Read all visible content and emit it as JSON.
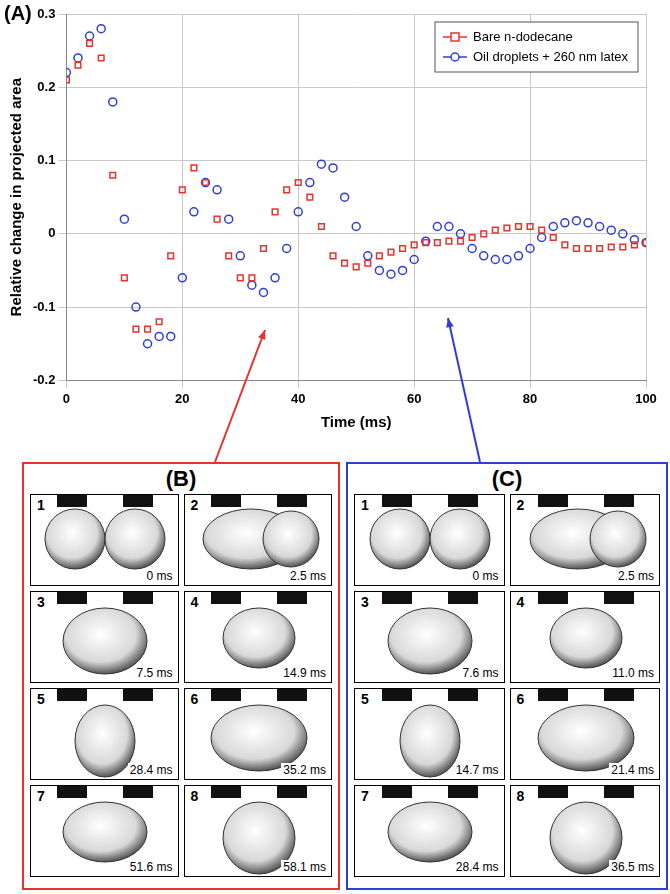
{
  "chart_data": {
    "type": "scatter",
    "panel": "(A)",
    "x_label": "Time (ms)",
    "y_label": "Relative change in projected area",
    "xlim": [
      0,
      100
    ],
    "xticks": [
      0,
      20,
      40,
      60,
      80,
      100
    ],
    "ylim": [
      -0.2,
      0.3
    ],
    "yticks": [
      -0.2,
      -0.1,
      0,
      0.1,
      0.2,
      0.3
    ],
    "grid": true,
    "legend": "upper right",
    "x": [
      0,
      2,
      4,
      6,
      8,
      10,
      12,
      14,
      16,
      18,
      20,
      22,
      24,
      26,
      28,
      30,
      32,
      34,
      36,
      38,
      40,
      42,
      44,
      46,
      48,
      50,
      52,
      54,
      56,
      58,
      60,
      62,
      64,
      66,
      68,
      70,
      72,
      74,
      76,
      78,
      80,
      82,
      84,
      86,
      88,
      90,
      92,
      94,
      96,
      98,
      100
    ],
    "series": [
      {
        "name": "Bare n-dodecane",
        "color": "#e8322d",
        "marker": "square",
        "line_style": "none",
        "values": [
          0.21,
          0.23,
          0.26,
          0.24,
          0.08,
          -0.06,
          -0.13,
          -0.13,
          -0.12,
          -0.03,
          0.06,
          0.09,
          0.07,
          0.02,
          -0.03,
          -0.06,
          -0.06,
          -0.02,
          0.03,
          0.06,
          0.07,
          0.05,
          0.01,
          -0.03,
          -0.04,
          -0.045,
          -0.04,
          -0.03,
          -0.025,
          -0.02,
          -0.015,
          -0.012,
          -0.012,
          -0.01,
          -0.01,
          -0.005,
          0,
          0.005,
          0.008,
          0.01,
          0.01,
          0.005,
          -0.005,
          -0.015,
          -0.02,
          -0.02,
          -0.02,
          -0.018,
          -0.018,
          -0.015,
          -0.012
        ]
      },
      {
        "name": "Oil droplets + 260 nm latex",
        "color": "#2f3fd6",
        "marker": "circle",
        "line_style": "none",
        "values": [
          0.22,
          0.24,
          0.27,
          0.28,
          0.18,
          0.02,
          -0.1,
          -0.15,
          -0.14,
          -0.14,
          -0.06,
          0.03,
          0.07,
          0.06,
          0.02,
          -0.03,
          -0.07,
          -0.08,
          -0.06,
          -0.02,
          0.03,
          0.07,
          0.095,
          0.09,
          0.05,
          0.01,
          -0.03,
          -0.05,
          -0.055,
          -0.05,
          -0.035,
          -0.01,
          0.01,
          0.01,
          0,
          -0.02,
          -0.03,
          -0.035,
          -0.035,
          -0.03,
          -0.02,
          -0.005,
          0.01,
          0.015,
          0.018,
          0.015,
          0.01,
          0.005,
          0,
          -0.008,
          -0.012
        ]
      }
    ]
  },
  "image_panels": [
    {
      "label": "(B)",
      "color": "#e8322d",
      "frames": [
        {
          "number": "1",
          "time": "0 ms"
        },
        {
          "number": "2",
          "time": "2.5 ms"
        },
        {
          "number": "3",
          "time": "7.5 ms"
        },
        {
          "number": "4",
          "time": "14.9 ms"
        },
        {
          "number": "5",
          "time": "28.4 ms"
        },
        {
          "number": "6",
          "time": "35.2 ms"
        },
        {
          "number": "7",
          "time": "51.6 ms"
        },
        {
          "number": "8",
          "time": "58.1 ms"
        }
      ]
    },
    {
      "label": "(C)",
      "color": "#2f3fd6",
      "frames": [
        {
          "number": "1",
          "time": "0 ms"
        },
        {
          "number": "2",
          "time": "2.5 ms"
        },
        {
          "number": "3",
          "time": "7.6 ms"
        },
        {
          "number": "4",
          "time": "11.0 ms"
        },
        {
          "number": "5",
          "time": "14.7 ms"
        },
        {
          "number": "6",
          "time": "21.4 ms"
        },
        {
          "number": "7",
          "time": "28.4 ms"
        },
        {
          "number": "8",
          "time": "36.5 ms"
        }
      ]
    }
  ]
}
